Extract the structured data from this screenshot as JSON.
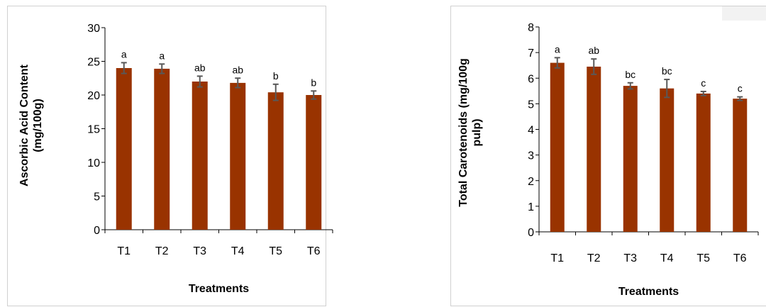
{
  "colors": {
    "bar": "#993300",
    "error_bar": "#595959",
    "axis": "#000000"
  },
  "chart_data": [
    {
      "type": "bar",
      "title": "",
      "xlabel": "Treatments",
      "ylabel_lines": [
        "Ascorbic Acid Content",
        "(mg/100g)"
      ],
      "categories": [
        "T1",
        "T2",
        "T3",
        "T4",
        "T5",
        "T6"
      ],
      "values": [
        24.0,
        23.9,
        22.0,
        21.8,
        20.4,
        20.0
      ],
      "errors": [
        0.8,
        0.7,
        0.8,
        0.7,
        1.2,
        0.6
      ],
      "letters": [
        "a",
        "a",
        "ab",
        "ab",
        "b",
        "b"
      ],
      "ylim": [
        0,
        30
      ],
      "yticks": [
        0,
        5,
        10,
        15,
        20,
        25,
        30
      ],
      "grid": false,
      "legend": "none"
    },
    {
      "type": "bar",
      "title": "",
      "xlabel": "Treatments",
      "ylabel_lines": [
        "Total Carotenoids (mg/100g",
        "pulp)"
      ],
      "categories": [
        "T1",
        "T2",
        "T3",
        "T4",
        "T5",
        "T6"
      ],
      "values": [
        6.6,
        6.45,
        5.7,
        5.6,
        5.4,
        5.2
      ],
      "errors": [
        0.2,
        0.3,
        0.12,
        0.35,
        0.08,
        0.07
      ],
      "letters": [
        "a",
        "ab",
        "bc",
        "bc",
        "c",
        "c"
      ],
      "ylim": [
        0,
        8
      ],
      "yticks": [
        0,
        1,
        2,
        3,
        4,
        5,
        6,
        7,
        8
      ],
      "grid": false,
      "legend": "none"
    }
  ]
}
